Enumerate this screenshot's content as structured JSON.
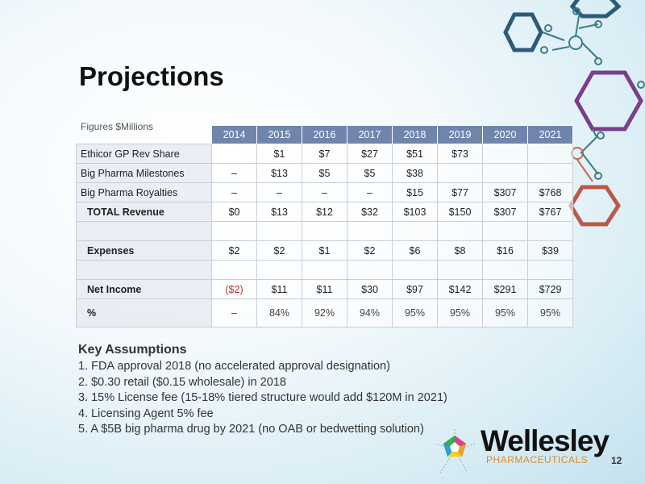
{
  "slide": {
    "title": "Projections",
    "page_number": "12"
  },
  "table": {
    "caption": "Figures $Millions",
    "years": [
      "2014",
      "2015",
      "2016",
      "2017",
      "2018",
      "2019",
      "2020",
      "2021"
    ],
    "rows": [
      {
        "label": "Ethicor GP Rev Share",
        "values": [
          "",
          "$1",
          "$7",
          "$27",
          "$51",
          "$73",
          "",
          ""
        ]
      },
      {
        "label": "Big Pharma Milestones",
        "values": [
          "–",
          "$13",
          "$5",
          "$5",
          "$38",
          "",
          "",
          ""
        ]
      },
      {
        "label": "Big Pharma Royalties",
        "values": [
          "–",
          "–",
          "–",
          "–",
          "$15",
          "$77",
          "$307",
          "$768"
        ]
      },
      {
        "label": "TOTAL Revenue",
        "values": [
          "$0",
          "$13",
          "$12",
          "$32",
          "$103",
          "$150",
          "$307",
          "$767"
        ]
      },
      {
        "label": "",
        "values": [
          "",
          "",
          "",
          "",
          "",
          "",
          "",
          ""
        ]
      },
      {
        "label": "Expenses",
        "values": [
          "$2",
          "$2",
          "$1",
          "$2",
          "$6",
          "$8",
          "$16",
          "$39"
        ]
      },
      {
        "label": "",
        "values": [
          "",
          "",
          "",
          "",
          "",
          "",
          "",
          ""
        ]
      },
      {
        "label": "Net Income",
        "values": [
          "($2)",
          "$11",
          "$11",
          "$30",
          "$97",
          "$142",
          "$291",
          "$729"
        ]
      },
      {
        "label": "%",
        "values": [
          "–",
          "84%",
          "92%",
          "94%",
          "95%",
          "95%",
          "95%",
          "95%"
        ]
      }
    ]
  },
  "key_assumptions": {
    "heading": "Key Assumptions",
    "items": [
      "1. FDA approval 2018 (no accelerated approval designation)",
      "2. $0.30 retail ($0.15 wholesale) in 2018",
      "3. 15% License fee (15-18% tiered structure would add $120M in 2021)",
      "4. Licensing Agent 5% fee",
      "5. A $5B big pharma drug by 2021 (no OAB or bedwetting solution)"
    ]
  },
  "logo": {
    "name": "Wellesley",
    "subtitle": "PHARMACEUTICALS"
  },
  "colors": {
    "header_blue": "#6f85ac",
    "negative_red": "#c0392b",
    "logo_orange": "#e08a2a"
  }
}
